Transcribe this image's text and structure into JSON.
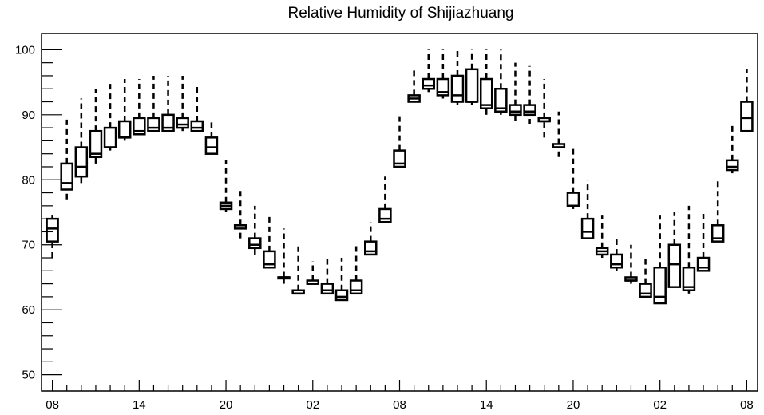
{
  "chart_data": {
    "type": "boxplot",
    "title": "Relative Humidity of Shijiazhuang",
    "xlabel": "",
    "ylabel": "",
    "ylim": [
      47.5,
      102.5
    ],
    "y_ticks": [
      50,
      60,
      70,
      80,
      90,
      100
    ],
    "x_tick_labels": [
      "08",
      "14",
      "20",
      "02",
      "08",
      "14",
      "20",
      "02",
      "08"
    ],
    "x_tick_positions": [
      0,
      6,
      12,
      18,
      24,
      30,
      36,
      42,
      48
    ],
    "xlim": [
      -0.75,
      48.75
    ],
    "boxes": [
      {
        "x": 0,
        "min": 68,
        "q1": 70.5,
        "median": 72.5,
        "q3": 74,
        "max": 74.5
      },
      {
        "x": 1,
        "min": 77,
        "q1": 78.5,
        "median": 79.5,
        "q3": 82.5,
        "max": 89.5
      },
      {
        "x": 2,
        "min": 79.5,
        "q1": 80.5,
        "median": 82,
        "q3": 85,
        "max": 92.5
      },
      {
        "x": 3,
        "min": 82.5,
        "q1": 83.5,
        "median": 84,
        "q3": 87.5,
        "max": 94
      },
      {
        "x": 4,
        "min": 84.5,
        "q1": 85,
        "median": 85,
        "q3": 88,
        "max": 95
      },
      {
        "x": 5,
        "min": 86,
        "q1": 86.5,
        "median": 86.5,
        "q3": 89,
        "max": 95.5
      },
      {
        "x": 6,
        "min": 87,
        "q1": 87,
        "median": 87.5,
        "q3": 89.5,
        "max": 95.5
      },
      {
        "x": 7,
        "min": 87.5,
        "q1": 87.5,
        "median": 88,
        "q3": 89.5,
        "max": 96
      },
      {
        "x": 8,
        "min": 87.5,
        "q1": 87.5,
        "median": 88,
        "q3": 90,
        "max": 96
      },
      {
        "x": 9,
        "min": 87.5,
        "q1": 88,
        "median": 88.5,
        "q3": 89.5,
        "max": 96
      },
      {
        "x": 10,
        "min": 87.5,
        "q1": 87.5,
        "median": 88,
        "q3": 89,
        "max": 94.5
      },
      {
        "x": 11,
        "min": 84,
        "q1": 84,
        "median": 85,
        "q3": 86.5,
        "max": 89
      },
      {
        "x": 12,
        "min": 75,
        "q1": 75.5,
        "median": 76,
        "q3": 76.5,
        "max": 83
      },
      {
        "x": 13,
        "min": 71,
        "q1": 72.5,
        "median": 73,
        "q3": 73,
        "max": 78.5
      },
      {
        "x": 14,
        "min": 68.5,
        "q1": 69.5,
        "median": 70,
        "q3": 71,
        "max": 76
      },
      {
        "x": 15,
        "min": 66.5,
        "q1": 66.5,
        "median": 67,
        "q3": 69,
        "max": 74.5
      },
      {
        "x": 16,
        "min": 64,
        "q1": 65,
        "median": 65,
        "q3": 65,
        "max": 72.5
      },
      {
        "x": 17,
        "min": 62.5,
        "q1": 62.5,
        "median": 62.5,
        "q3": 63,
        "max": 70
      },
      {
        "x": 18,
        "min": 64,
        "q1": 64,
        "median": 64,
        "q3": 64.5,
        "max": 67.5
      },
      {
        "x": 19,
        "min": 62.5,
        "q1": 62.5,
        "median": 63,
        "q3": 64,
        "max": 68.5
      },
      {
        "x": 20,
        "min": 61.5,
        "q1": 61.5,
        "median": 62,
        "q3": 63,
        "max": 68
      },
      {
        "x": 21,
        "min": 62.5,
        "q1": 62.5,
        "median": 63,
        "q3": 64.5,
        "max": 70
      },
      {
        "x": 22,
        "min": 68.5,
        "q1": 68.5,
        "median": 69,
        "q3": 70.5,
        "max": 73.5
      },
      {
        "x": 23,
        "min": 73.5,
        "q1": 73.5,
        "median": 74,
        "q3": 75.5,
        "max": 80.5
      },
      {
        "x": 24,
        "min": 82,
        "q1": 82,
        "median": 82.5,
        "q3": 84.5,
        "max": 90
      },
      {
        "x": 25,
        "min": 92,
        "q1": 92,
        "median": 92.5,
        "q3": 93,
        "max": 97
      },
      {
        "x": 26,
        "min": 93.5,
        "q1": 94,
        "median": 94.5,
        "q3": 95.5,
        "max": 100
      },
      {
        "x": 27,
        "min": 92.5,
        "q1": 93,
        "median": 93.5,
        "q3": 95.5,
        "max": 100
      },
      {
        "x": 28,
        "min": 91.5,
        "q1": 92,
        "median": 93,
        "q3": 96,
        "max": 100
      },
      {
        "x": 29,
        "min": 91.5,
        "q1": 92,
        "median": 92,
        "q3": 97,
        "max": 100
      },
      {
        "x": 30,
        "min": 90,
        "q1": 91,
        "median": 91.5,
        "q3": 95.5,
        "max": 100
      },
      {
        "x": 31,
        "min": 90,
        "q1": 90.5,
        "median": 91,
        "q3": 94,
        "max": 100
      },
      {
        "x": 32,
        "min": 89,
        "q1": 90,
        "median": 90.5,
        "q3": 91.5,
        "max": 98
      },
      {
        "x": 33,
        "min": 88.5,
        "q1": 90,
        "median": 90.5,
        "q3": 91.5,
        "max": 97.5
      },
      {
        "x": 34,
        "min": 86.5,
        "q1": 89,
        "median": 89,
        "q3": 89.5,
        "max": 95.5
      },
      {
        "x": 35,
        "min": 83.5,
        "q1": 85,
        "median": 85,
        "q3": 85.5,
        "max": 90.5
      },
      {
        "x": 36,
        "min": 75.5,
        "q1": 76,
        "median": 76,
        "q3": 78,
        "max": 85
      },
      {
        "x": 37,
        "min": 71,
        "q1": 71,
        "median": 72,
        "q3": 74,
        "max": 80
      },
      {
        "x": 38,
        "min": 68,
        "q1": 68.5,
        "median": 69,
        "q3": 69.5,
        "max": 74.5
      },
      {
        "x": 39,
        "min": 66,
        "q1": 66.5,
        "median": 67,
        "q3": 68.5,
        "max": 71
      },
      {
        "x": 40,
        "min": 64,
        "q1": 64.5,
        "median": 64.5,
        "q3": 65,
        "max": 70
      },
      {
        "x": 41,
        "min": 62,
        "q1": 62,
        "median": 62.5,
        "q3": 64,
        "max": 68
      },
      {
        "x": 42,
        "min": 61,
        "q1": 61,
        "median": 62,
        "q3": 66.5,
        "max": 74.5
      },
      {
        "x": 43,
        "min": 63.5,
        "q1": 63.5,
        "median": 67,
        "q3": 70,
        "max": 75
      },
      {
        "x": 44,
        "min": 62.5,
        "q1": 63,
        "median": 63.5,
        "q3": 66.5,
        "max": 76
      },
      {
        "x": 45,
        "min": 66,
        "q1": 66,
        "median": 66.5,
        "q3": 68,
        "max": 75
      },
      {
        "x": 46,
        "min": 70.5,
        "q1": 70.5,
        "median": 71,
        "q3": 73,
        "max": 80
      },
      {
        "x": 47,
        "min": 81,
        "q1": 81.5,
        "median": 82,
        "q3": 83,
        "max": 88.5
      },
      {
        "x": 48,
        "min": 87.5,
        "q1": 87.5,
        "median": 89.5,
        "q3": 92,
        "max": 97
      }
    ]
  }
}
